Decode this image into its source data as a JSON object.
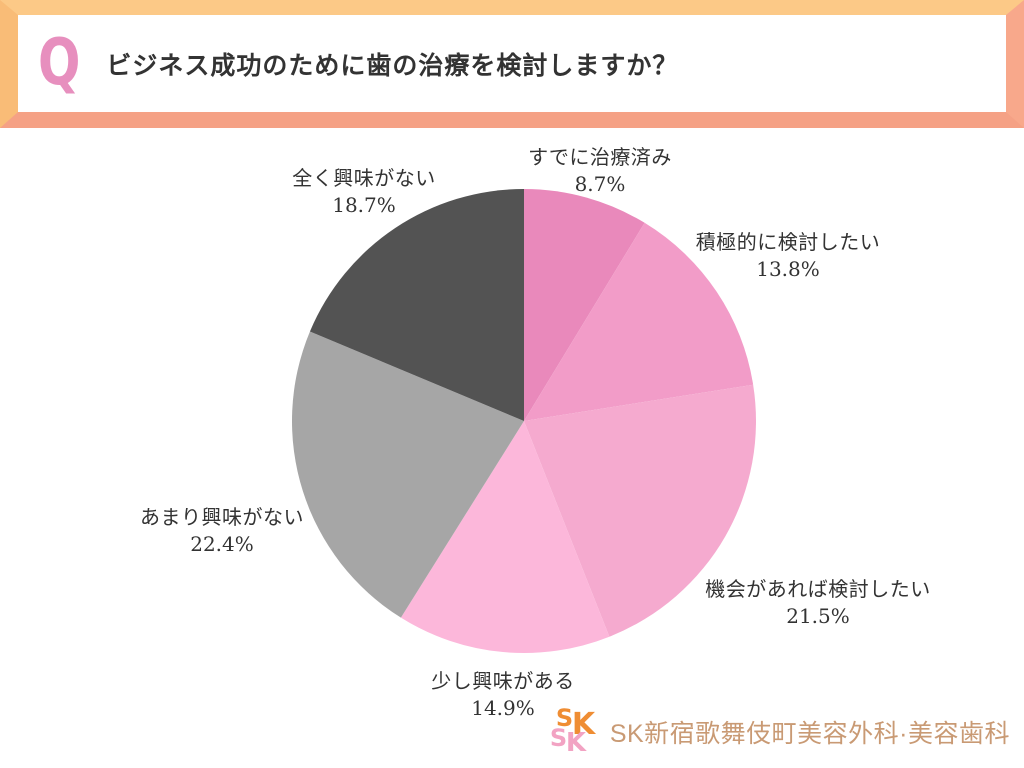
{
  "header": {
    "q_mark": "Q",
    "question": "ビジネス成功のために歯の治療を検討しますか？",
    "border_top_color": "#fcc987",
    "border_bottom_color": "#f5a185",
    "q_mark_color": "#e78fbe"
  },
  "chart_data": {
    "type": "pie",
    "title": "ビジネス成功のために歯の治療を検討しますか？",
    "start_angle_deg": 0,
    "direction": "clockwise",
    "legend_position": "outside-labels",
    "slices": [
      {
        "label": "すでに治療済み",
        "value": 8.7,
        "percent_label": "8.7%",
        "color": "#e989bb"
      },
      {
        "label": "積極的に検討したい",
        "value": 13.8,
        "percent_label": "13.8%",
        "color": "#f29cc8"
      },
      {
        "label": "機会があれば検討したい",
        "value": 21.5,
        "percent_label": "21.5%",
        "color": "#f5aacf"
      },
      {
        "label": "少し興味がある",
        "value": 14.9,
        "percent_label": "14.9%",
        "color": "#fcb7da"
      },
      {
        "label": "あまり興味がない",
        "value": 22.4,
        "percent_label": "22.4%",
        "color": "#a6a6a6"
      },
      {
        "label": "全く興味がない",
        "value": 18.7,
        "percent_label": "18.7%",
        "color": "#535353"
      }
    ]
  },
  "footer": {
    "brand_name": "SK新宿歌舞伎町美容外科·美容歯科",
    "brand_color": "#c99a74",
    "mark": {
      "s1": "S",
      "k1": "K",
      "s2": "S",
      "k2": "K"
    }
  }
}
